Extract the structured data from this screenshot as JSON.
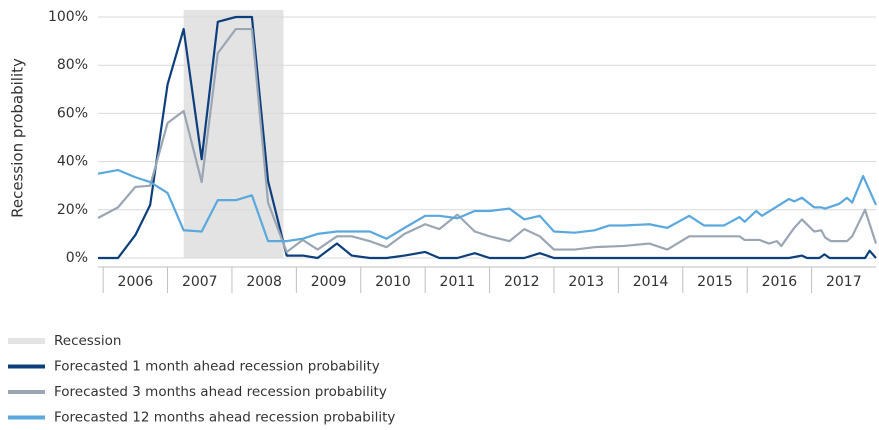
{
  "chart_data": {
    "type": "line",
    "y_label": "Recession probability",
    "xlim": [
      2005.92,
      2018.0
    ],
    "xticks": [
      2006,
      2007,
      2008,
      2009,
      2010,
      2011,
      2012,
      2013,
      2014,
      2015,
      2016,
      2017
    ],
    "ylim": [
      0,
      100
    ],
    "yticks": [
      {
        "value": 0,
        "label": "0%"
      },
      {
        "value": 20,
        "label": "20%"
      },
      {
        "value": 40,
        "label": "40%"
      },
      {
        "value": 60,
        "label": "60%"
      },
      {
        "value": 80,
        "label": "80%"
      },
      {
        "value": 100,
        "label": "100%"
      }
    ],
    "grid": true,
    "recession": {
      "name": "Recession",
      "color": "#e3e3e3",
      "start": 2007.25,
      "end": 2008.8
    },
    "series": [
      {
        "name": "Forecasted 1 month ahead recession probability",
        "color": "#0d3f7c",
        "x": [
          2005.92,
          2006.23,
          2006.5,
          2006.73,
          2007.0,
          2007.25,
          2007.53,
          2007.78,
          2008.06,
          2008.31,
          2008.56,
          2008.85,
          2009.1,
          2009.33,
          2009.63,
          2009.86,
          2010.14,
          2010.4,
          2010.68,
          2011.0,
          2011.22,
          2011.5,
          2011.77,
          2012.0,
          2012.54,
          2012.78,
          2013.0,
          2016.65,
          2016.85,
          2016.93,
          2017.12,
          2017.2,
          2017.28,
          2017.83,
          2017.9,
          2018.0
        ],
        "values": [
          0,
          0,
          9.5,
          22,
          72,
          95,
          41,
          98,
          100,
          100,
          32,
          1,
          1,
          0,
          6,
          1,
          0,
          0,
          1,
          2.5,
          0,
          0,
          2,
          0,
          0,
          2,
          0,
          0,
          1,
          0,
          0,
          1.5,
          0,
          0,
          3,
          0
        ]
      },
      {
        "name": "Forecasted 3 months ahead recession probability",
        "color": "#9ba6b5",
        "x": [
          2005.92,
          2006.23,
          2006.5,
          2006.73,
          2007.0,
          2007.25,
          2007.53,
          2007.78,
          2008.06,
          2008.31,
          2008.56,
          2008.85,
          2009.1,
          2009.33,
          2009.63,
          2009.86,
          2010.14,
          2010.4,
          2010.68,
          2011.0,
          2011.22,
          2011.5,
          2011.77,
          2012.0,
          2012.31,
          2012.54,
          2012.78,
          2013.0,
          2013.32,
          2013.63,
          2014.09,
          2014.48,
          2014.76,
          2015.1,
          2015.88,
          2015.96,
          2016.19,
          2016.34,
          2016.46,
          2016.53,
          2016.73,
          2016.85,
          2017.04,
          2017.15,
          2017.21,
          2017.3,
          2017.55,
          2017.63,
          2017.83,
          2018.0
        ],
        "values": [
          16.6,
          21,
          29.5,
          30,
          56,
          61,
          31.5,
          85,
          95,
          95,
          23,
          2.5,
          7.5,
          3.5,
          9,
          9,
          7,
          4.5,
          10,
          14,
          12,
          18,
          11,
          9,
          7,
          12,
          9,
          3.5,
          3.5,
          4.5,
          5,
          6,
          3.5,
          9,
          9,
          7.5,
          7.5,
          6,
          7,
          5,
          12.5,
          16,
          11,
          11.5,
          8.5,
          7,
          7,
          9,
          20,
          6
        ]
      },
      {
        "name": "Forecasted 12 months ahead recession probability",
        "color": "#5aa8dd",
        "x": [
          2005.92,
          2006.23,
          2006.5,
          2006.73,
          2007.0,
          2007.25,
          2007.53,
          2007.78,
          2008.06,
          2008.31,
          2008.56,
          2008.85,
          2009.1,
          2009.33,
          2009.63,
          2009.86,
          2010.14,
          2010.4,
          2010.68,
          2011.0,
          2011.22,
          2011.5,
          2011.77,
          2012.0,
          2012.31,
          2012.54,
          2012.78,
          2013.0,
          2013.32,
          2013.63,
          2013.86,
          2014.09,
          2014.48,
          2014.76,
          2015.1,
          2015.33,
          2015.64,
          2015.88,
          2015.96,
          2016.14,
          2016.23,
          2016.47,
          2016.65,
          2016.73,
          2016.85,
          2017.04,
          2017.15,
          2017.21,
          2017.43,
          2017.55,
          2017.63,
          2017.8,
          2018.0
        ],
        "values": [
          35,
          36.5,
          33.5,
          31.5,
          27,
          11.5,
          11,
          24,
          24,
          26,
          7,
          7,
          8,
          10,
          11,
          11,
          11,
          8,
          12.5,
          17.5,
          17.5,
          16.5,
          19.5,
          19.5,
          20.5,
          16,
          17.5,
          11,
          10.5,
          11.5,
          13.5,
          13.5,
          14,
          12.5,
          17.5,
          13.5,
          13.5,
          17,
          15,
          19.5,
          17.5,
          21.5,
          24.5,
          23.5,
          25,
          21,
          21,
          20.5,
          22.5,
          25,
          23,
          34,
          22
        ]
      }
    ]
  }
}
